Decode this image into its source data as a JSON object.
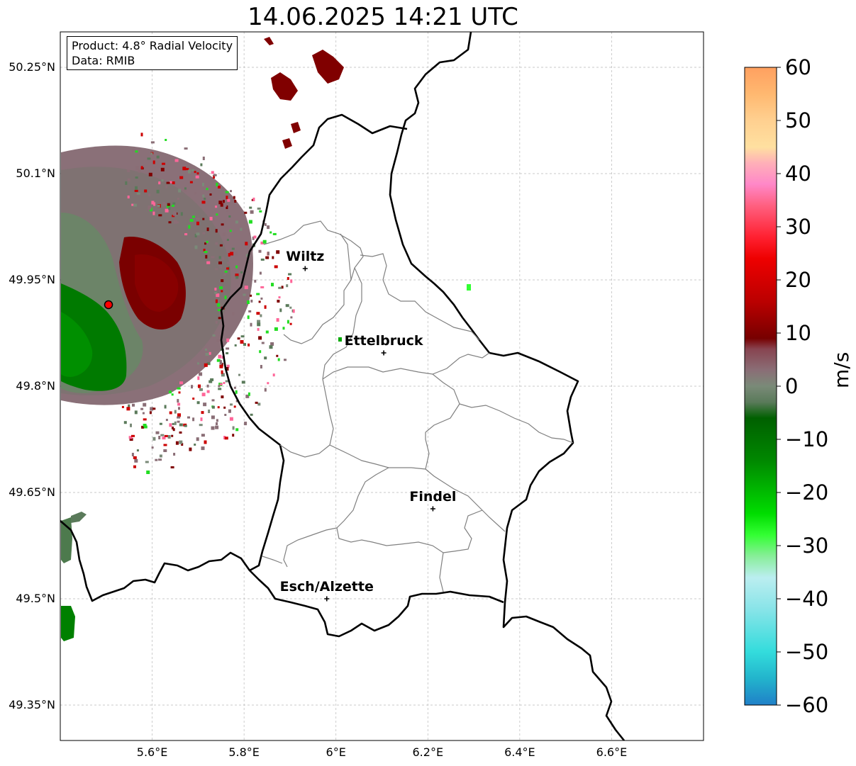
{
  "title": "14.06.2025 14:21 UTC",
  "info": {
    "product": "Product: 4.8° Radial Velocity",
    "data": "Data: RMIB"
  },
  "axes": {
    "lat_labels": [
      "50.25°N",
      "50.1°N",
      "49.95°N",
      "49.8°N",
      "49.65°N",
      "49.5°N",
      "49.35°N"
    ],
    "lon_labels": [
      "5.6°E",
      "5.8°E",
      "6°E",
      "6.2°E",
      "6.4°E",
      "6.6°E"
    ],
    "lat_values": [
      50.25,
      50.1,
      49.95,
      49.8,
      49.65,
      49.5,
      49.35
    ],
    "lon_values": [
      5.6,
      5.8,
      6.0,
      6.2,
      6.4,
      6.6
    ],
    "lon_range": [
      5.4,
      6.8
    ],
    "lat_range": [
      49.3,
      50.3
    ]
  },
  "cities": [
    {
      "name": "Wiltz",
      "lat": 49.966,
      "lon": 5.933
    },
    {
      "name": "Ettelbruck",
      "lat": 49.847,
      "lon": 6.104
    },
    {
      "name": "Findel",
      "lat": 49.627,
      "lon": 6.211
    },
    {
      "name": "Esch/Alzette",
      "lat": 49.5,
      "lon": 5.98
    }
  ],
  "radar": {
    "name": "radar-site",
    "lat": 49.915,
    "lon": 5.505,
    "color": "#ff0000"
  },
  "colorbar": {
    "unit": "m/s",
    "tick_labels": [
      "60",
      "50",
      "40",
      "30",
      "20",
      "10",
      "0",
      "−10",
      "−20",
      "−30",
      "−40",
      "−50",
      "−60"
    ],
    "tick_values": [
      60,
      50,
      40,
      30,
      20,
      10,
      0,
      -10,
      -20,
      -30,
      -40,
      -50,
      -60
    ],
    "range": [
      -60,
      60
    ],
    "stops": [
      {
        "v": 60,
        "c": "#ffa060"
      },
      {
        "v": 55,
        "c": "#ffb870"
      },
      {
        "v": 50,
        "c": "#ffd090"
      },
      {
        "v": 45,
        "c": "#ffe0a0"
      },
      {
        "v": 42,
        "c": "#ffb0b8"
      },
      {
        "v": 38,
        "c": "#ff88c8"
      },
      {
        "v": 34,
        "c": "#ff6080"
      },
      {
        "v": 28,
        "c": "#ff2030"
      },
      {
        "v": 24,
        "c": "#ee0000"
      },
      {
        "v": 16,
        "c": "#bb0000"
      },
      {
        "v": 9,
        "c": "#770000"
      },
      {
        "v": 7,
        "c": "#884450"
      },
      {
        "v": 3,
        "c": "#8a6e76"
      },
      {
        "v": 0,
        "c": "#7a8a78"
      },
      {
        "v": -3,
        "c": "#5a7a5a"
      },
      {
        "v": -6,
        "c": "#006000"
      },
      {
        "v": -14,
        "c": "#008800"
      },
      {
        "v": -24,
        "c": "#00dd00"
      },
      {
        "v": -28,
        "c": "#33ff33"
      },
      {
        "v": -32,
        "c": "#88ee99"
      },
      {
        "v": -36,
        "c": "#bbeef0"
      },
      {
        "v": -42,
        "c": "#88e4e8"
      },
      {
        "v": -50,
        "c": "#33dcdc"
      },
      {
        "v": -55,
        "c": "#22b4cc"
      },
      {
        "v": -60,
        "c": "#2080c8"
      }
    ]
  },
  "colors": {
    "border": "#000000",
    "district": "#808080",
    "grid": "#b8b8b8"
  }
}
